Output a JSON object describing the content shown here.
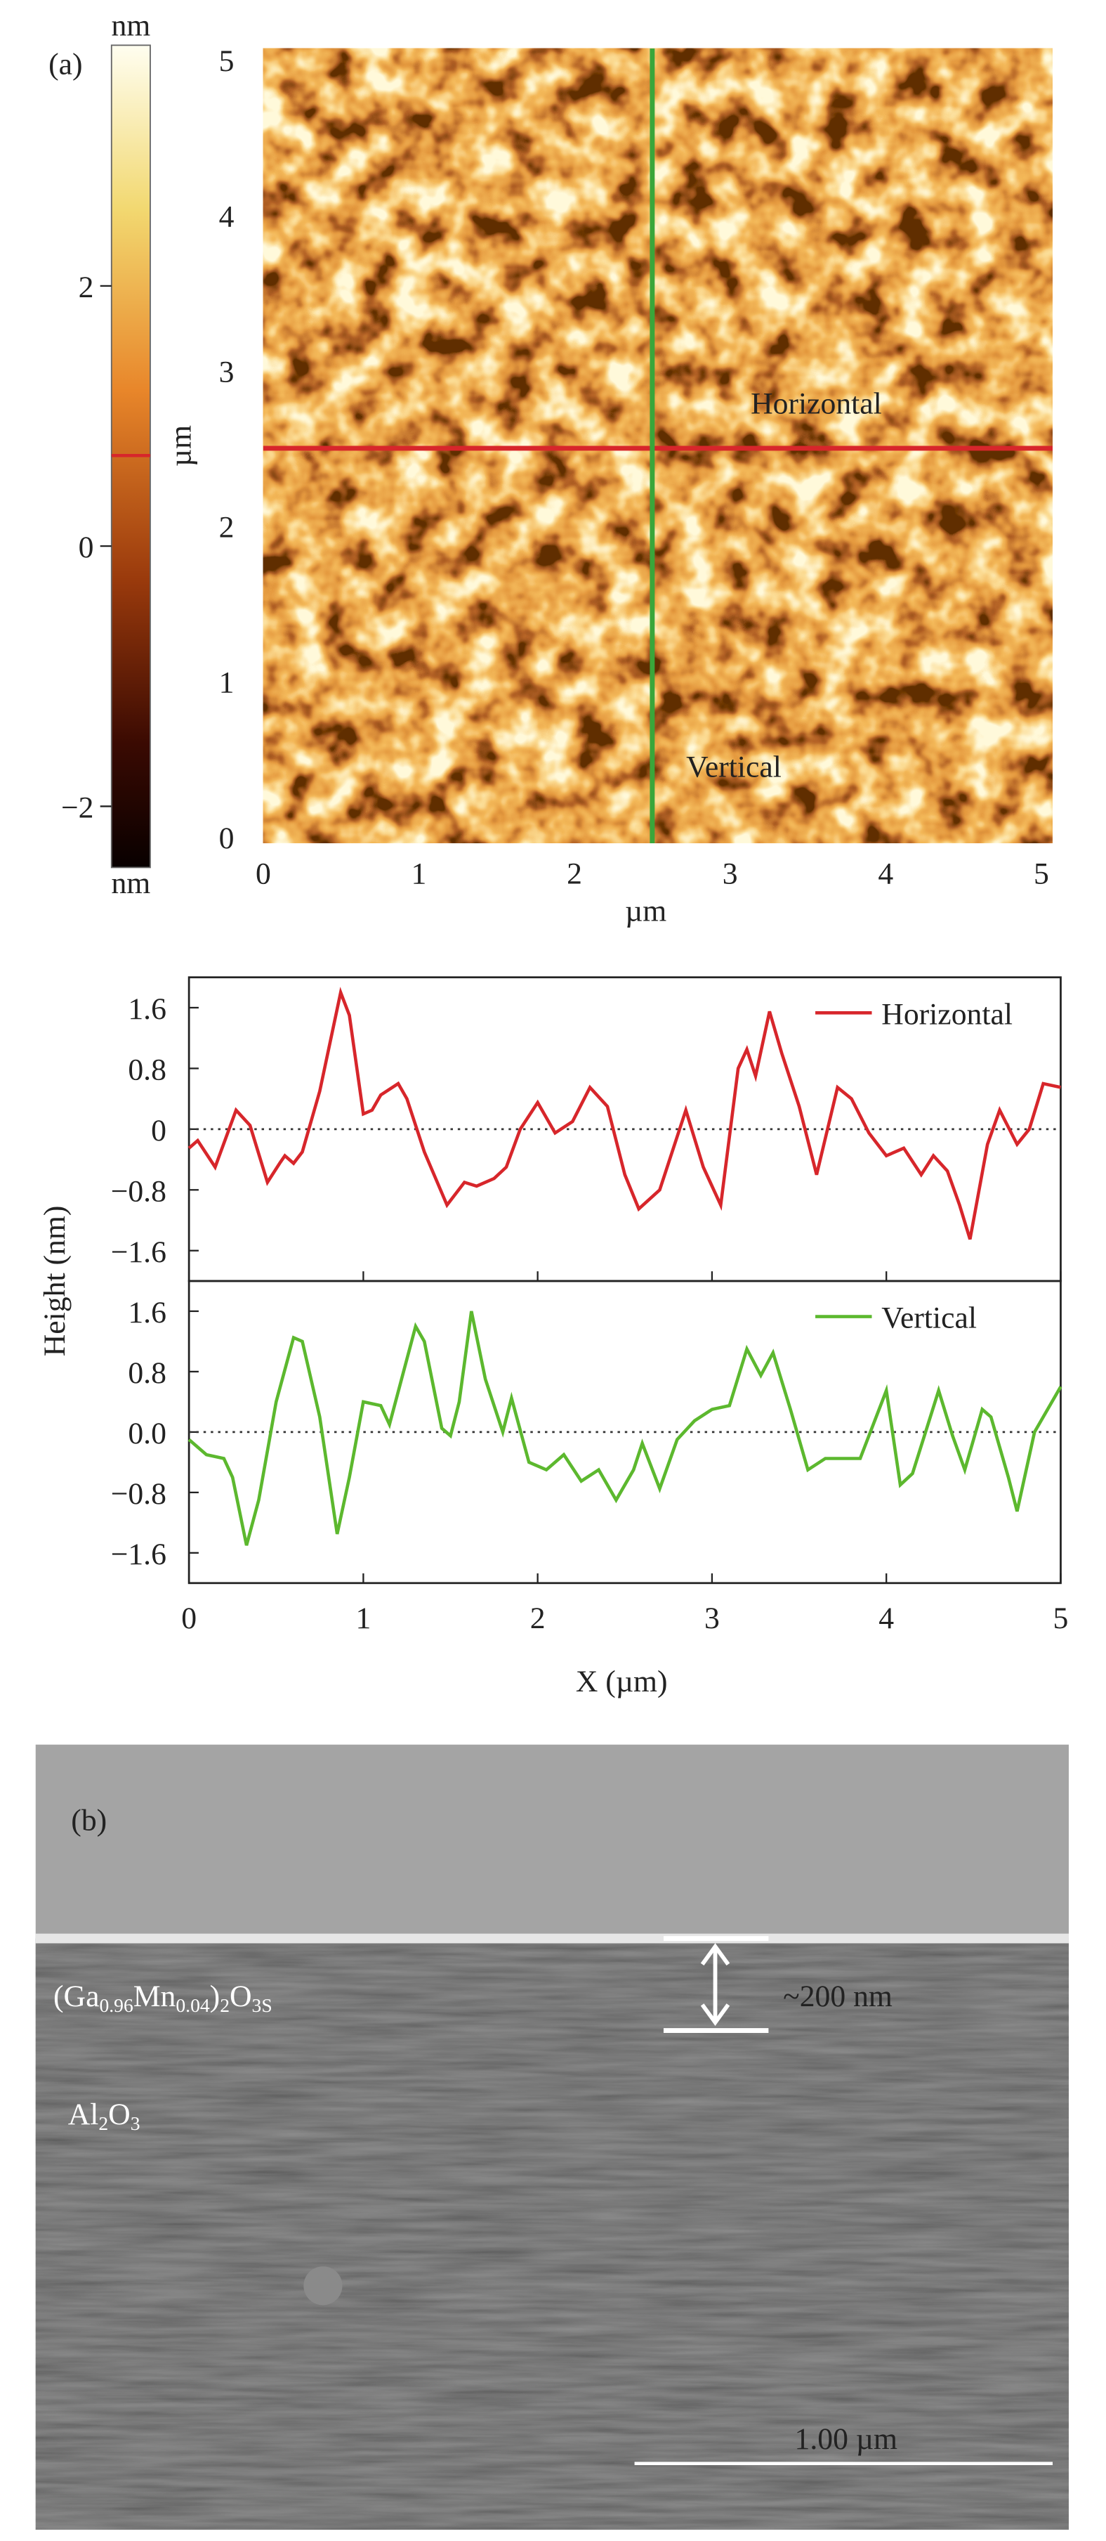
{
  "afm": {
    "panel_label": "(a)",
    "colorbar": {
      "unit_top": "nm",
      "unit_bottom": "nm",
      "clim": [
        -2.47,
        3.85
      ],
      "ticks": [
        2,
        0,
        {
          "value": -2,
          "label": "−2"
        }
      ]
    },
    "ylabel": "µm",
    "xlabel": "µm",
    "xlim": [
      0,
      5
    ],
    "ylim": [
      0,
      5
    ],
    "xticks": [
      0,
      1,
      2,
      3,
      4,
      5
    ],
    "yticks": [
      0,
      1,
      2,
      3,
      4,
      5
    ],
    "horizontal_label": "Horizontal",
    "vertical_label": "Vertical",
    "horizontal_line_y": 2.5,
    "vertical_line_x": 2.5,
    "horizontal_color": "#d7262b",
    "vertical_color": "#3aa63a"
  },
  "chart_data": [
    {
      "type": "line",
      "xlim": [
        0,
        5
      ],
      "ylim": [
        -2,
        2
      ],
      "legend": "upper right",
      "yticks": [
        {
          "value": -1.6,
          "label": "−1.6"
        },
        {
          "value": -0.8,
          "label": "−0.8"
        },
        0,
        0.8,
        1.6
      ],
      "x": [
        0,
        0.05,
        0.15,
        0.27,
        0.35,
        0.45,
        0.52,
        0.55,
        0.6,
        0.65,
        0.75,
        0.87,
        0.92,
        1.0,
        1.05,
        1.1,
        1.2,
        1.25,
        1.35,
        1.48,
        1.58,
        1.65,
        1.75,
        1.82,
        1.9,
        2.0,
        2.1,
        2.2,
        2.3,
        2.4,
        2.5,
        2.58,
        2.7,
        2.85,
        2.95,
        3.05,
        3.15,
        3.2,
        3.25,
        3.33,
        3.4,
        3.5,
        3.6,
        3.72,
        3.8,
        3.9,
        4.0,
        4.1,
        4.2,
        4.27,
        4.35,
        4.42,
        4.48,
        4.58,
        4.65,
        4.75,
        4.82,
        4.9,
        5.0
      ],
      "series": [
        {
          "name": "Horizontal",
          "color": "#d7262b",
          "values": [
            -0.25,
            -0.15,
            -0.5,
            0.25,
            0.05,
            -0.7,
            -0.45,
            -0.35,
            -0.45,
            -0.3,
            0.5,
            1.8,
            1.5,
            0.2,
            0.25,
            0.45,
            0.6,
            0.4,
            -0.3,
            -1.0,
            -0.7,
            -0.75,
            -0.65,
            -0.5,
            0.0,
            0.35,
            -0.05,
            0.1,
            0.55,
            0.3,
            -0.6,
            -1.05,
            -0.8,
            0.25,
            -0.5,
            -1.0,
            0.8,
            1.05,
            0.7,
            1.55,
            1.0,
            0.3,
            -0.6,
            0.55,
            0.4,
            -0.05,
            -0.35,
            -0.25,
            -0.6,
            -0.35,
            -0.55,
            -1.0,
            -1.45,
            -0.2,
            0.25,
            -0.2,
            0.0,
            0.6,
            0.55
          ]
        }
      ]
    },
    {
      "type": "line",
      "xlim": [
        0,
        5
      ],
      "ylim": [
        -2,
        2
      ],
      "legend": "upper right",
      "ylabel": "Height (nm)",
      "xlabel": "X (µm)",
      "xticks": [
        0,
        1,
        2,
        3,
        4,
        5
      ],
      "yticks": [
        {
          "value": -1.6,
          "label": "−1.6"
        },
        {
          "value": -0.8,
          "label": "−0.8"
        },
        {
          "value": 0,
          "label": "0.0"
        },
        0.8,
        1.6
      ],
      "x": [
        0,
        0.1,
        0.2,
        0.25,
        0.33,
        0.4,
        0.5,
        0.6,
        0.65,
        0.75,
        0.85,
        0.92,
        1.0,
        1.1,
        1.15,
        1.3,
        1.35,
        1.45,
        1.5,
        1.55,
        1.62,
        1.7,
        1.8,
        1.85,
        1.95,
        2.05,
        2.15,
        2.25,
        2.35,
        2.45,
        2.55,
        2.6,
        2.7,
        2.8,
        2.9,
        3.0,
        3.1,
        3.2,
        3.28,
        3.35,
        3.45,
        3.55,
        3.65,
        3.75,
        3.85,
        4.0,
        4.08,
        4.15,
        4.3,
        4.38,
        4.45,
        4.55,
        4.6,
        4.7,
        4.75,
        4.85,
        5.0
      ],
      "series": [
        {
          "name": "Vertical",
          "color": "#5cb82e",
          "values": [
            -0.1,
            -0.3,
            -0.35,
            -0.6,
            -1.5,
            -0.9,
            0.4,
            1.25,
            1.2,
            0.2,
            -1.35,
            -0.6,
            0.4,
            0.35,
            0.1,
            1.4,
            1.2,
            0.05,
            -0.05,
            0.4,
            1.6,
            0.7,
            0.0,
            0.45,
            -0.4,
            -0.5,
            -0.3,
            -0.65,
            -0.5,
            -0.9,
            -0.5,
            -0.15,
            -0.75,
            -0.1,
            0.15,
            0.3,
            0.35,
            1.1,
            0.75,
            1.05,
            0.3,
            -0.5,
            -0.35,
            -0.35,
            -0.35,
            0.55,
            -0.7,
            -0.55,
            0.55,
            -0.05,
            -0.5,
            0.3,
            0.2,
            -0.6,
            -1.05,
            0.0,
            0.6
          ]
        }
      ]
    }
  ],
  "sem": {
    "panel_label": "(b)",
    "film_label": [
      "(Ga",
      "0.96",
      "Mn",
      "0.04",
      ")",
      "2",
      "O",
      "3S"
    ],
    "thickness_label": "~200 nm",
    "substrate_label": [
      "Al",
      "2",
      "O",
      "3"
    ],
    "scale_bar_label": "1.00 µm"
  }
}
